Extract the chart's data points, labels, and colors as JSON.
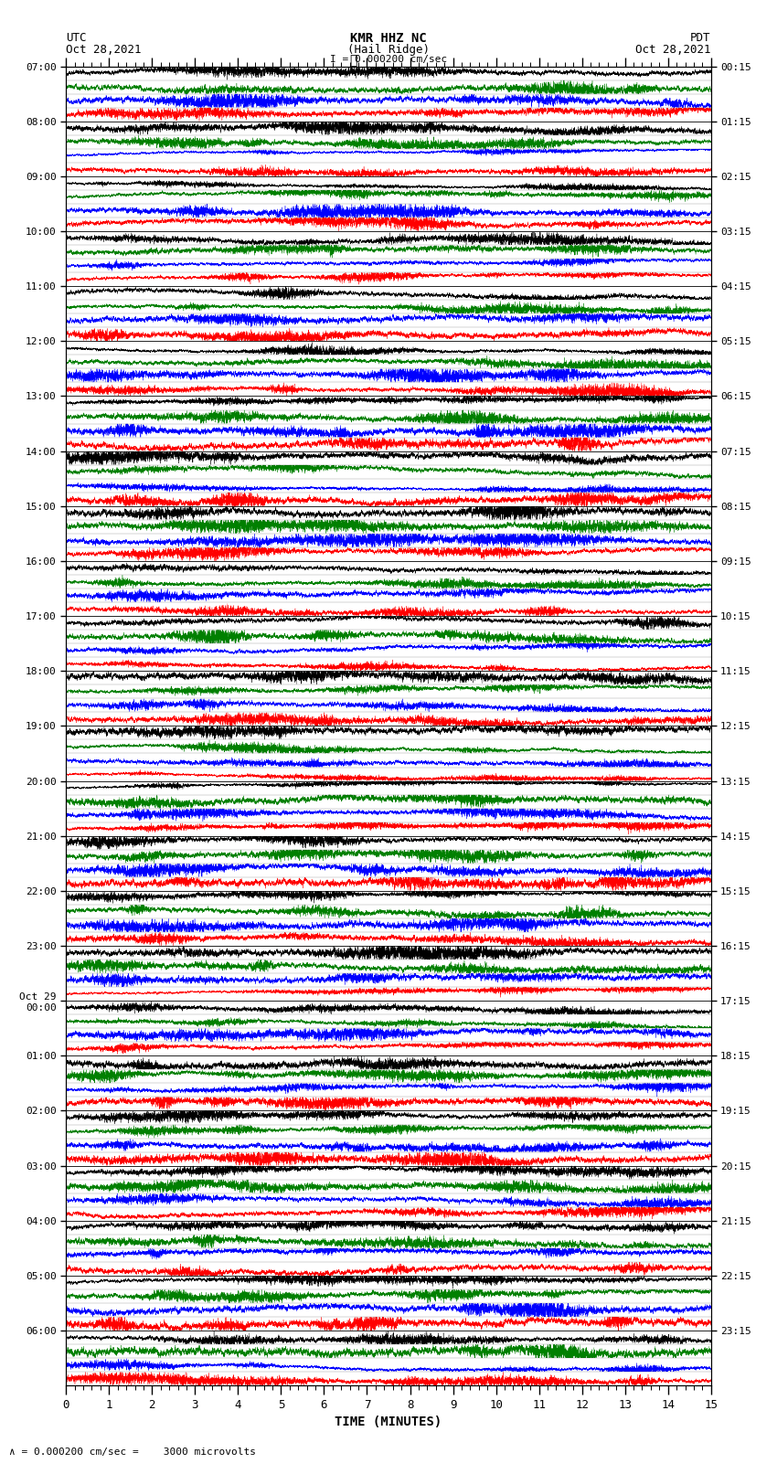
{
  "title_line1": "KMR HHZ NC",
  "title_line2": "(Hail Ridge)",
  "scale_label": "I = 0.000200 cm/sec",
  "left_label_line1": "UTC",
  "left_label_line2": "Oct 28,2021",
  "right_label_line1": "PDT",
  "right_label_line2": "Oct 28,2021",
  "xlabel": "TIME (MINUTES)",
  "bottom_note": "= 0.000200 cm/sec =    3000 microvolts",
  "utc_times": [
    "07:00",
    "08:00",
    "09:00",
    "10:00",
    "11:00",
    "12:00",
    "13:00",
    "14:00",
    "15:00",
    "16:00",
    "17:00",
    "18:00",
    "19:00",
    "20:00",
    "21:00",
    "22:00",
    "23:00",
    "Oct 29\n00:00",
    "01:00",
    "02:00",
    "03:00",
    "04:00",
    "05:00",
    "06:00"
  ],
  "pdt_times": [
    "00:15",
    "01:15",
    "02:15",
    "03:15",
    "04:15",
    "05:15",
    "06:15",
    "07:15",
    "08:15",
    "09:15",
    "10:15",
    "11:15",
    "12:15",
    "13:15",
    "14:15",
    "15:15",
    "16:15",
    "17:15",
    "18:15",
    "19:15",
    "20:15",
    "21:15",
    "22:15",
    "23:15"
  ],
  "n_rows": 24,
  "minutes_per_row": 15,
  "subrows": 4,
  "colors": [
    "red",
    "blue",
    "green",
    "black"
  ],
  "bg_color": "white",
  "figsize": [
    8.5,
    16.13
  ],
  "dpi": 100
}
